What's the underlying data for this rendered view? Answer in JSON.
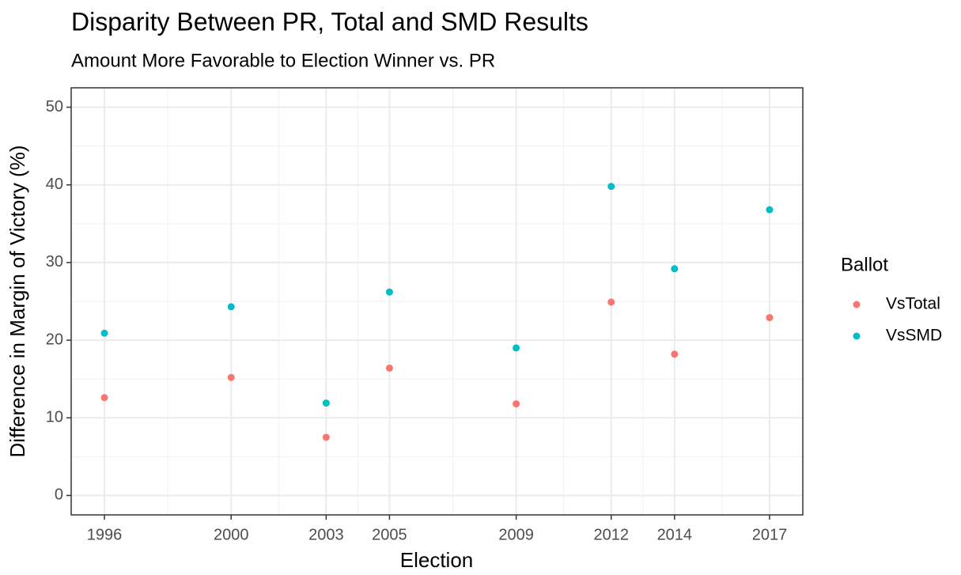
{
  "chart_data": {
    "type": "scatter",
    "title": "Disparity Between PR, Total and SMD Results",
    "subtitle": "Amount More Favorable to Election Winner vs. PR",
    "x_label": "Election",
    "y_label": "Difference in Margin of Victory (%)",
    "legend_title": "Ballot",
    "legend": "right",
    "grid": true,
    "x": [
      1996,
      2000,
      2003,
      2005,
      2009,
      2012,
      2014,
      2017
    ],
    "series": [
      {
        "name": "VsTotal",
        "color": "#F8766D",
        "values": [
          12.6,
          15.2,
          7.5,
          16.4,
          11.8,
          24.9,
          18.2,
          22.9
        ]
      },
      {
        "name": "VsSMD",
        "color": "#00BFC4",
        "values": [
          20.9,
          24.3,
          11.9,
          26.2,
          19.0,
          39.8,
          29.2,
          36.8
        ]
      }
    ],
    "xlim": [
      1994.95,
      2018.05
    ],
    "xticks": [
      1996,
      2000,
      2003,
      2005,
      2009,
      2012,
      2014,
      2017
    ],
    "ylim": [
      -2.5,
      52.5
    ],
    "yticks": [
      0,
      10,
      20,
      30,
      40,
      50
    ]
  }
}
